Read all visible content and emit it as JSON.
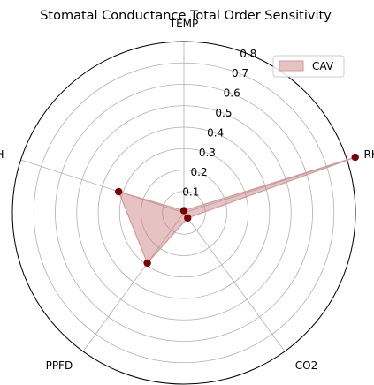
{
  "chart_data": {
    "type": "radar",
    "title": "Stomatal Conductance Total Order Sensitivity",
    "axes": [
      "TEMP",
      "RH",
      "CO2",
      "PPFD",
      "H"
    ],
    "series": [
      {
        "name": "CAV",
        "values": [
          0.01,
          0.84,
          0.03,
          0.29,
          0.32
        ],
        "fill_color": "#c87878",
        "line_color": "#d29a9a",
        "marker_color": "#7b0000"
      }
    ],
    "rlim": [
      0,
      0.8
    ],
    "rticks": [
      "0.1",
      "0.2",
      "0.3",
      "0.4",
      "0.5",
      "0.6",
      "0.7",
      "0.8"
    ],
    "grid": true,
    "legend_position": "top-right"
  }
}
